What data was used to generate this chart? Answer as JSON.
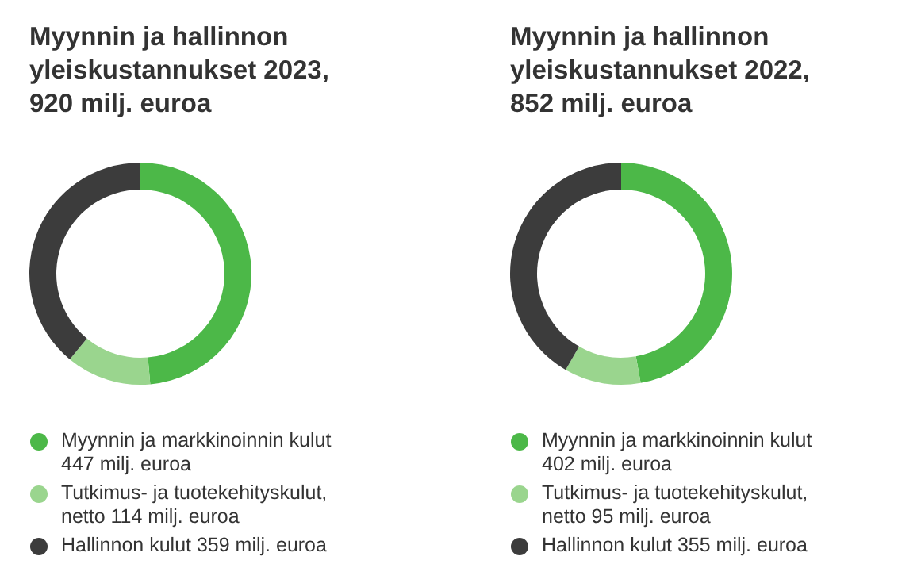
{
  "chart_data": [
    {
      "type": "donut",
      "title": "Myynnin ja hallinnon yleiskustannukset 2023, 920 milj. euroa",
      "categories": [
        "Myynnin ja markkinoinnin kulut",
        "Tutkimus- ja tuotekehityskulut, netto",
        "Hallinnon kulut"
      ],
      "values": [
        447,
        114,
        359
      ],
      "value_labels": [
        "447 milj. euroa",
        "114 milj. euroa",
        "359 milj. euroa"
      ],
      "colors": [
        "#4cb848",
        "#9ad58e",
        "#3c3c3c"
      ],
      "legend": "bottom"
    },
    {
      "type": "donut",
      "title": "Myynnin ja hallinnon yleiskustannukset 2022, 852 milj. euroa",
      "categories": [
        "Myynnin ja markkinoinnin kulut",
        "Tutkimus- ja tuotekehityskulut, netto",
        "Hallinnon kulut"
      ],
      "values": [
        402,
        95,
        355
      ],
      "value_labels": [
        "402 milj. euroa",
        "95 milj. euroa",
        "355 milj. euroa"
      ],
      "colors": [
        "#4cb848",
        "#9ad58e",
        "#3c3c3c"
      ],
      "legend": "bottom"
    }
  ]
}
